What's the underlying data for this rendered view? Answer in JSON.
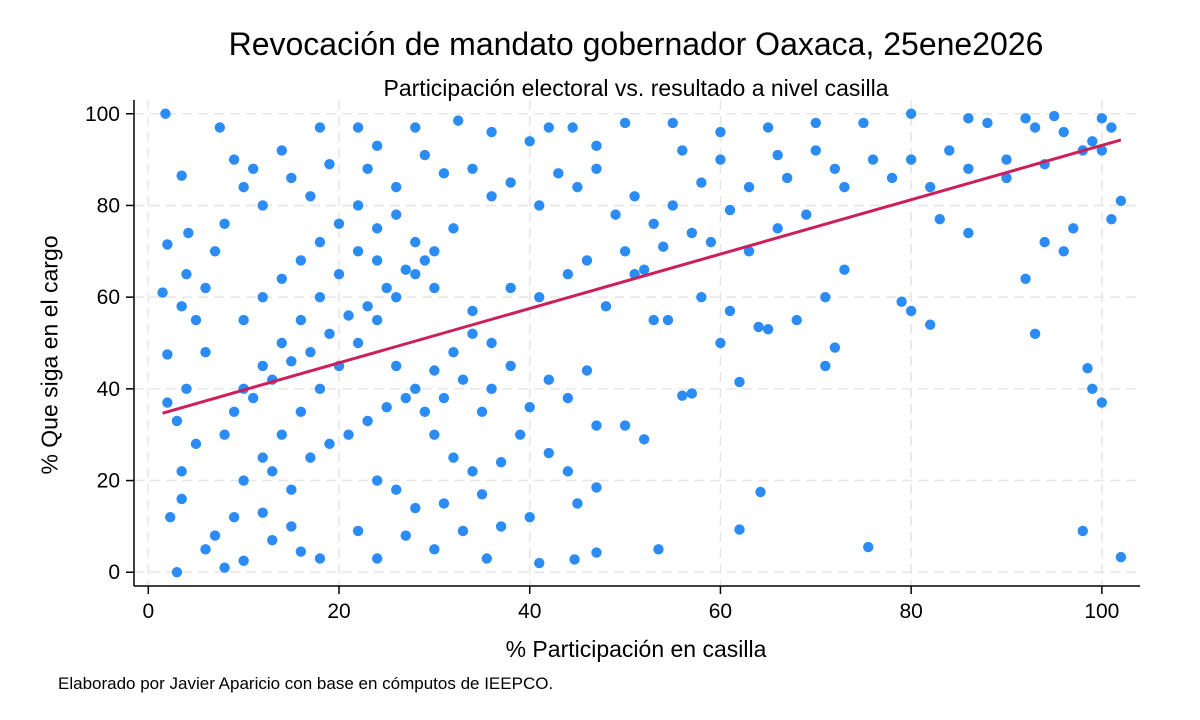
{
  "chart_data": {
    "type": "scatter",
    "title": "Revocación de mandato gobernador Oaxaca, 25ene2026",
    "subtitle": "Participación electoral vs. resultado a nivel casilla",
    "xlabel": "% Participación en casilla",
    "ylabel": "% Que siga en el cargo",
    "note": "Elaborado por Javier Aparicio con base en cómputos de IEEPCO.",
    "xlim": [
      -1.5,
      104
    ],
    "ylim": [
      -3,
      103
    ],
    "xticks": [
      0,
      20,
      40,
      60,
      80,
      100
    ],
    "yticks": [
      0,
      20,
      40,
      60,
      80,
      100
    ],
    "grid": true,
    "colors": {
      "points": "#2b8cf5",
      "fit_line": "#cc1f5b",
      "grid": "#e6e6e6"
    },
    "fit_line": {
      "x": [
        1.5,
        102
      ],
      "y": [
        34.7,
        94.3
      ]
    },
    "points": [
      [
        1.8,
        100
      ],
      [
        3,
        0
      ],
      [
        2,
        71.5
      ],
      [
        1.5,
        61
      ],
      [
        2,
        47.5
      ],
      [
        2,
        37
      ],
      [
        2.3,
        12
      ],
      [
        3.5,
        22
      ],
      [
        3.5,
        16
      ],
      [
        8,
        1
      ],
      [
        10,
        2.5
      ],
      [
        3.5,
        86.5
      ],
      [
        7.5,
        97
      ],
      [
        10,
        84
      ],
      [
        4.2,
        74
      ],
      [
        6,
        62
      ],
      [
        12,
        80
      ],
      [
        18,
        97
      ],
      [
        22,
        97
      ],
      [
        24,
        93
      ],
      [
        32.5,
        98.5
      ],
      [
        28,
        97
      ],
      [
        36,
        96
      ],
      [
        42,
        97
      ],
      [
        44.5,
        97
      ],
      [
        50,
        98
      ],
      [
        47,
        93
      ],
      [
        40,
        94
      ],
      [
        55,
        98
      ],
      [
        60,
        96
      ],
      [
        65,
        97
      ],
      [
        70,
        98
      ],
      [
        75,
        98
      ],
      [
        80,
        100
      ],
      [
        86,
        99
      ],
      [
        92,
        99
      ],
      [
        95,
        99.5
      ],
      [
        100,
        99
      ],
      [
        101,
        97
      ],
      [
        99,
        94
      ],
      [
        100,
        92
      ],
      [
        98,
        92
      ],
      [
        96,
        96
      ],
      [
        93,
        97
      ],
      [
        88,
        98
      ],
      [
        56,
        92
      ],
      [
        60,
        90
      ],
      [
        66,
        91
      ],
      [
        70,
        92
      ],
      [
        72,
        88
      ],
      [
        76,
        90
      ],
      [
        80,
        90
      ],
      [
        84,
        92
      ],
      [
        90,
        90
      ],
      [
        94,
        89
      ],
      [
        58,
        85
      ],
      [
        63,
        84
      ],
      [
        67,
        86
      ],
      [
        73,
        84
      ],
      [
        78,
        86
      ],
      [
        82,
        84
      ],
      [
        86,
        88
      ],
      [
        90,
        86
      ],
      [
        96,
        70
      ],
      [
        97,
        75
      ],
      [
        101,
        77
      ],
      [
        102,
        81
      ],
      [
        92,
        64
      ],
      [
        93,
        52
      ],
      [
        94,
        72
      ],
      [
        86,
        74
      ],
      [
        83,
        77
      ],
      [
        79,
        59
      ],
      [
        80,
        57
      ],
      [
        82,
        54
      ],
      [
        73,
        66
      ],
      [
        72,
        49
      ],
      [
        71,
        45
      ],
      [
        68,
        55
      ],
      [
        71,
        60
      ],
      [
        62,
        41.5
      ],
      [
        64,
        53.5
      ],
      [
        65,
        53
      ],
      [
        60,
        50
      ],
      [
        61,
        57
      ],
      [
        58,
        60
      ],
      [
        57,
        39
      ],
      [
        56,
        38.5
      ],
      [
        52,
        29
      ],
      [
        50,
        32
      ],
      [
        53,
        55
      ],
      [
        51,
        65
      ],
      [
        54.5,
        55
      ],
      [
        47,
        32
      ],
      [
        47,
        18.5
      ],
      [
        45,
        15
      ],
      [
        64.2,
        17.5
      ],
      [
        62,
        9.3
      ],
      [
        53.5,
        5
      ],
      [
        75.5,
        5.5
      ],
      [
        98,
        9
      ],
      [
        102,
        3.3
      ],
      [
        98.5,
        44.5
      ],
      [
        99,
        40
      ],
      [
        100,
        37
      ],
      [
        41,
        2
      ],
      [
        47,
        4.3
      ],
      [
        44.7,
        2.8
      ],
      [
        35.5,
        3
      ],
      [
        30,
        5
      ],
      [
        24,
        3
      ],
      [
        16,
        4.5
      ],
      [
        18,
        3
      ],
      [
        6,
        5
      ],
      [
        7,
        8
      ],
      [
        9,
        12
      ],
      [
        12,
        13
      ],
      [
        13,
        7
      ],
      [
        15,
        10
      ],
      [
        22,
        9
      ],
      [
        27,
        8
      ],
      [
        33,
        9
      ],
      [
        37,
        10
      ],
      [
        40,
        12
      ],
      [
        5,
        28
      ],
      [
        4,
        40
      ],
      [
        3,
        33
      ],
      [
        5,
        55
      ],
      [
        4,
        65
      ],
      [
        3.5,
        58
      ],
      [
        6,
        48
      ],
      [
        7,
        70
      ],
      [
        8,
        76
      ],
      [
        9,
        90
      ],
      [
        11,
        88
      ],
      [
        14,
        92
      ],
      [
        15,
        86
      ],
      [
        17,
        82
      ],
      [
        19,
        89
      ],
      [
        23,
        88
      ],
      [
        26,
        84
      ],
      [
        29,
        91
      ],
      [
        31,
        87
      ],
      [
        34,
        88
      ],
      [
        36,
        82
      ],
      [
        38,
        85
      ],
      [
        41,
        80
      ],
      [
        43,
        87
      ],
      [
        45,
        84
      ],
      [
        47,
        88
      ],
      [
        49,
        78
      ],
      [
        51,
        82
      ],
      [
        53,
        76
      ],
      [
        55,
        80
      ],
      [
        57,
        74
      ],
      [
        59,
        72
      ],
      [
        61,
        79
      ],
      [
        63,
        70
      ],
      [
        66,
        75
      ],
      [
        69,
        78
      ],
      [
        34,
        57
      ],
      [
        38,
        62
      ],
      [
        41,
        60
      ],
      [
        44,
        65
      ],
      [
        46,
        68
      ],
      [
        48,
        58
      ],
      [
        50,
        70
      ],
      [
        52,
        66
      ],
      [
        54,
        71
      ],
      [
        36,
        40
      ],
      [
        38,
        45
      ],
      [
        40,
        36
      ],
      [
        42,
        42
      ],
      [
        44,
        38
      ],
      [
        46,
        44
      ],
      [
        39,
        30
      ],
      [
        42,
        26
      ],
      [
        44,
        22
      ],
      [
        30,
        30
      ],
      [
        32,
        25
      ],
      [
        34,
        22
      ],
      [
        31,
        15
      ],
      [
        35,
        17
      ],
      [
        37,
        24
      ],
      [
        28,
        14
      ],
      [
        26,
        18
      ],
      [
        24,
        20
      ],
      [
        10,
        20
      ],
      [
        12,
        25
      ],
      [
        14,
        30
      ],
      [
        16,
        35
      ],
      [
        18,
        40
      ],
      [
        20,
        45
      ],
      [
        22,
        50
      ],
      [
        24,
        55
      ],
      [
        26,
        60
      ],
      [
        28,
        65
      ],
      [
        30,
        70
      ],
      [
        32,
        75
      ],
      [
        10,
        40
      ],
      [
        12,
        45
      ],
      [
        14,
        50
      ],
      [
        16,
        55
      ],
      [
        18,
        60
      ],
      [
        20,
        65
      ],
      [
        22,
        70
      ],
      [
        24,
        75
      ],
      [
        26,
        78
      ],
      [
        28,
        72
      ],
      [
        30,
        62
      ],
      [
        8,
        30
      ],
      [
        9,
        35
      ],
      [
        11,
        38
      ],
      [
        13,
        42
      ],
      [
        15,
        46
      ],
      [
        17,
        48
      ],
      [
        19,
        52
      ],
      [
        21,
        56
      ],
      [
        23,
        58
      ],
      [
        25,
        62
      ],
      [
        27,
        66
      ],
      [
        29,
        68
      ],
      [
        10,
        55
      ],
      [
        12,
        60
      ],
      [
        14,
        64
      ],
      [
        16,
        68
      ],
      [
        18,
        72
      ],
      [
        20,
        76
      ],
      [
        22,
        80
      ],
      [
        24,
        68
      ],
      [
        26,
        45
      ],
      [
        28,
        40
      ],
      [
        30,
        44
      ],
      [
        32,
        48
      ],
      [
        34,
        52
      ],
      [
        36,
        50
      ],
      [
        13,
        22
      ],
      [
        15,
        18
      ],
      [
        17,
        25
      ],
      [
        19,
        28
      ],
      [
        21,
        30
      ],
      [
        23,
        33
      ],
      [
        25,
        36
      ],
      [
        27,
        38
      ],
      [
        29,
        35
      ],
      [
        31,
        38
      ],
      [
        33,
        42
      ],
      [
        35,
        35
      ]
    ]
  }
}
